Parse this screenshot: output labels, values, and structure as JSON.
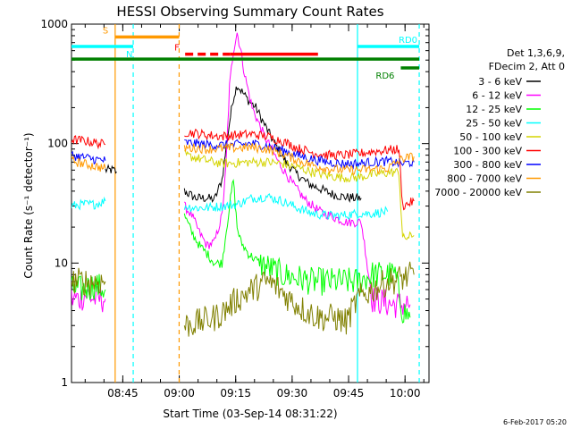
{
  "chart_data": {
    "type": "line",
    "title": "HESSI Observing Summary Count Rates",
    "xlabel": "Start Time (03-Sep-14 08:31:22)",
    "ylabel": "Count Rate (s⁻¹ detector⁻¹)",
    "yscale": "log",
    "ylim": [
      1,
      1000
    ],
    "xlim_minutes": [
      0,
      95
    ],
    "x_tick_labels": [
      "08:45",
      "09:00",
      "09:15",
      "09:30",
      "09:45",
      "10:00"
    ],
    "x_tick_minutes": [
      13.633,
      28.633,
      43.633,
      58.633,
      73.633,
      88.633
    ],
    "y_tick_labels": [
      "1",
      "10",
      "100",
      "1000"
    ],
    "y_tick_values": [
      1,
      10,
      100,
      1000
    ],
    "legend_header": [
      "Det 1,3,6,9,",
      "FDecim 2, Att 0"
    ],
    "legend_position": "right",
    "series": [
      {
        "name": "3 - 6 keV",
        "color": "#000000",
        "points": [
          [
            9,
            60
          ],
          [
            10,
            60
          ],
          [
            11,
            60
          ],
          [
            12,
            58
          ],
          [
            30,
            40
          ],
          [
            33,
            35
          ],
          [
            36,
            35
          ],
          [
            38,
            34
          ],
          [
            40,
            50
          ],
          [
            42,
            150
          ],
          [
            43,
            240
          ],
          [
            44,
            310
          ],
          [
            45,
            280
          ],
          [
            47,
            230
          ],
          [
            49,
            200
          ],
          [
            51,
            150
          ],
          [
            54,
            100
          ],
          [
            57,
            70
          ],
          [
            60,
            55
          ],
          [
            63,
            46
          ],
          [
            66,
            42
          ],
          [
            69,
            38
          ],
          [
            72,
            36
          ],
          [
            75,
            35
          ],
          [
            77,
            35
          ]
        ]
      },
      {
        "name": "6 - 12 keV",
        "color": "#ff00ff",
        "points": [
          [
            0,
            5
          ],
          [
            2,
            5
          ],
          [
            4,
            5.5
          ],
          [
            6,
            5
          ],
          [
            8,
            5
          ],
          [
            9,
            5
          ],
          [
            30,
            30
          ],
          [
            32,
            25
          ],
          [
            34,
            18
          ],
          [
            36,
            14
          ],
          [
            38,
            15
          ],
          [
            40,
            25
          ],
          [
            41,
            60
          ],
          [
            42,
            300
          ],
          [
            43,
            600
          ],
          [
            44,
            850
          ],
          [
            45,
            600
          ],
          [
            46,
            380
          ],
          [
            48,
            200
          ],
          [
            51,
            120
          ],
          [
            55,
            70
          ],
          [
            59,
            45
          ],
          [
            62,
            34
          ],
          [
            66,
            27
          ],
          [
            70,
            24
          ],
          [
            73,
            22
          ],
          [
            77,
            22
          ],
          [
            80,
            5
          ],
          [
            85,
            4.5
          ],
          [
            90,
            4.5
          ]
        ]
      },
      {
        "name": "12 - 25 keV",
        "color": "#00ff00",
        "points": [
          [
            0,
            6
          ],
          [
            3,
            6
          ],
          [
            6,
            6.5
          ],
          [
            9,
            6
          ],
          [
            30,
            25
          ],
          [
            32,
            18
          ],
          [
            34,
            14
          ],
          [
            36,
            12
          ],
          [
            38,
            10
          ],
          [
            40,
            10
          ],
          [
            42,
            30
          ],
          [
            43,
            50
          ],
          [
            44,
            20
          ],
          [
            45,
            15
          ],
          [
            47,
            12
          ],
          [
            50,
            10
          ],
          [
            53,
            9
          ],
          [
            56,
            8
          ],
          [
            60,
            7.5
          ],
          [
            64,
            7
          ],
          [
            68,
            7
          ],
          [
            72,
            7
          ],
          [
            76,
            7
          ],
          [
            80,
            8
          ],
          [
            84,
            8
          ],
          [
            86,
            8
          ],
          [
            88,
            4
          ],
          [
            90,
            3.5
          ]
        ]
      },
      {
        "name": "25 - 50 keV",
        "color": "#00ffff",
        "points": [
          [
            0,
            30
          ],
          [
            3,
            31
          ],
          [
            6,
            31
          ],
          [
            9,
            33
          ],
          [
            30,
            30
          ],
          [
            33,
            29
          ],
          [
            36,
            29
          ],
          [
            40,
            30
          ],
          [
            44,
            31
          ],
          [
            48,
            35
          ],
          [
            52,
            36
          ],
          [
            56,
            33
          ],
          [
            60,
            29
          ],
          [
            64,
            26
          ],
          [
            68,
            25
          ],
          [
            72,
            25
          ],
          [
            76,
            26
          ],
          [
            80,
            26
          ],
          [
            84,
            27
          ]
        ]
      },
      {
        "name": "50 - 100 keV",
        "color": "#d4d400",
        "points": [
          [
            30,
            80
          ],
          [
            33,
            76
          ],
          [
            36,
            72
          ],
          [
            40,
            68
          ],
          [
            44,
            69
          ],
          [
            48,
            70
          ],
          [
            52,
            70
          ],
          [
            56,
            68
          ],
          [
            60,
            63
          ],
          [
            64,
            58
          ],
          [
            68,
            54
          ],
          [
            72,
            52
          ],
          [
            76,
            52
          ],
          [
            80,
            55
          ],
          [
            84,
            57
          ],
          [
            87,
            58
          ],
          [
            88,
            16
          ],
          [
            91,
            17
          ]
        ]
      },
      {
        "name": "100 - 300 keV",
        "color": "#ff0000",
        "points": [
          [
            0,
            108
          ],
          [
            3,
            106
          ],
          [
            6,
            102
          ],
          [
            9,
            98
          ],
          [
            30,
            125
          ],
          [
            33,
            122
          ],
          [
            36,
            118
          ],
          [
            40,
            115
          ],
          [
            44,
            118
          ],
          [
            48,
            120
          ],
          [
            52,
            115
          ],
          [
            56,
            105
          ],
          [
            60,
            92
          ],
          [
            64,
            84
          ],
          [
            68,
            80
          ],
          [
            72,
            80
          ],
          [
            76,
            82
          ],
          [
            80,
            86
          ],
          [
            84,
            88
          ],
          [
            87,
            90
          ],
          [
            88,
            30
          ],
          [
            91,
            33
          ]
        ]
      },
      {
        "name": "300 - 800 keV",
        "color": "#0000ff",
        "points": [
          [
            0,
            80
          ],
          [
            3,
            77
          ],
          [
            6,
            74
          ],
          [
            9,
            72
          ],
          [
            30,
            102
          ],
          [
            33,
            100
          ],
          [
            36,
            98
          ],
          [
            40,
            97
          ],
          [
            44,
            98
          ],
          [
            48,
            100
          ],
          [
            52,
            96
          ],
          [
            56,
            88
          ],
          [
            60,
            80
          ],
          [
            64,
            74
          ],
          [
            68,
            70
          ],
          [
            72,
            68
          ],
          [
            76,
            68
          ],
          [
            80,
            70
          ],
          [
            84,
            71
          ],
          [
            88,
            68
          ],
          [
            91,
            70
          ]
        ]
      },
      {
        "name": "800 - 7000 keV",
        "color": "#ff9900",
        "points": [
          [
            0,
            72
          ],
          [
            3,
            68
          ],
          [
            6,
            65
          ],
          [
            9,
            62
          ],
          [
            30,
            92
          ],
          [
            33,
            92
          ],
          [
            36,
            90
          ],
          [
            40,
            91
          ],
          [
            44,
            92
          ],
          [
            48,
            93
          ],
          [
            52,
            90
          ],
          [
            56,
            82
          ],
          [
            60,
            73
          ],
          [
            64,
            66
          ],
          [
            68,
            62
          ],
          [
            72,
            60
          ],
          [
            76,
            60
          ],
          [
            80,
            61
          ],
          [
            84,
            62
          ],
          [
            88,
            75
          ],
          [
            91,
            78
          ]
        ]
      },
      {
        "name": "7000 - 20000 keV",
        "color": "#808000",
        "points": [
          [
            0,
            7
          ],
          [
            3,
            7
          ],
          [
            6,
            7
          ],
          [
            9,
            7
          ],
          [
            30,
            3
          ],
          [
            34,
            3.2
          ],
          [
            38,
            3.5
          ],
          [
            40,
            3.8
          ],
          [
            44,
            5
          ],
          [
            48,
            6
          ],
          [
            52,
            7
          ],
          [
            54,
            6.5
          ],
          [
            58,
            5
          ],
          [
            62,
            4
          ],
          [
            66,
            3.5
          ],
          [
            70,
            3.5
          ],
          [
            73,
            3.2
          ],
          [
            76,
            5
          ],
          [
            80,
            6
          ],
          [
            84,
            7
          ],
          [
            88,
            7.5
          ],
          [
            91,
            8
          ]
        ]
      }
    ],
    "state_bars": [
      {
        "label": "S",
        "color": "#ff9900",
        "start": 11.6,
        "end": 28.6,
        "level": 780
      },
      {
        "label": "N",
        "color": "#00ffff",
        "start": 0,
        "end": 16.4,
        "level": 650
      },
      {
        "label": "F",
        "color": "#ff0000",
        "start": 30.2,
        "end": 65.5,
        "level": 560,
        "dashed_until": 42.1
      },
      {
        "label": "RD0",
        "color": "#00ffff",
        "start": 76.0,
        "end": 92.4,
        "level": 650
      },
      {
        "label": "",
        "color": "#008000",
        "start": 0,
        "end": 92.4,
        "level": 510
      },
      {
        "label": "RD6",
        "color": "#008000",
        "start": 87.5,
        "end": 92.4,
        "level": 430
      }
    ],
    "vertical_markers": [
      {
        "color": "#ff9900",
        "x": 11.6,
        "style": "solid"
      },
      {
        "color": "#00ffff",
        "x": 16.4,
        "style": "dashed"
      },
      {
        "color": "#ff9900",
        "x": 28.6,
        "style": "dashed"
      },
      {
        "color": "#00ffff",
        "x": 76.0,
        "style": "solid"
      },
      {
        "color": "#00ffff",
        "x": 92.4,
        "style": "dashed"
      }
    ],
    "footer_date": "6-Feb-2017 05:20"
  }
}
